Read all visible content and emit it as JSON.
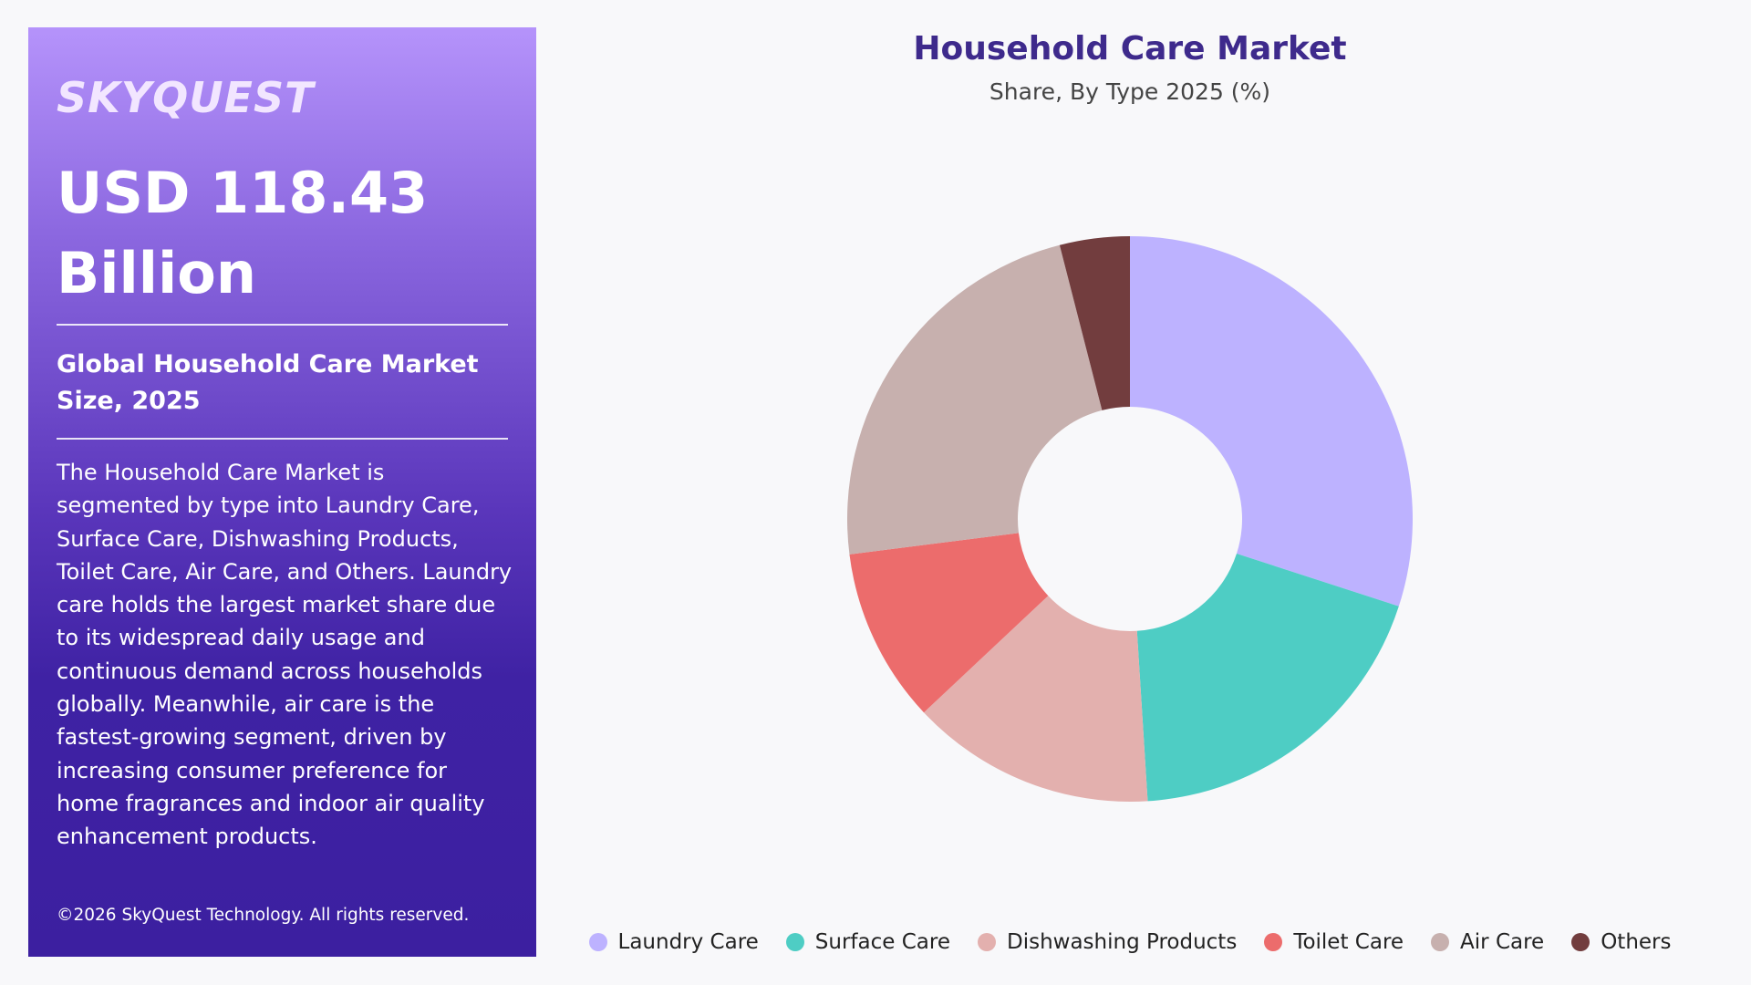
{
  "brand": "SKYQUEST",
  "panel": {
    "headline_value": "USD 118.43 Billion",
    "market_size_label": "Global Household Care Market Size, 2025",
    "description": "The Household Care Market is segmented by type into Laundry Care, Surface Care, Dishwashing Products, Toilet Care, Air Care, and Others. Laundry care holds the largest market share due to its widespread daily usage and continuous demand across households globally. Meanwhile, air care is the fastest-growing segment, driven by increasing consumer preference for home fragrances and indoor air quality enhancement products.",
    "copyright": "©2026 SkyQuest Technology. All rights reserved."
  },
  "chart_data": {
    "type": "pie",
    "title": "Household Care Market",
    "subtitle": "Share, By Type 2025 (%)",
    "donut": true,
    "legend_position": "bottom",
    "categories": [
      "Laundry Care",
      "Surface Care",
      "Dishwashing Products",
      "Toilet Care",
      "Air Care",
      "Others"
    ],
    "values": [
      30,
      19,
      14,
      10,
      23,
      4
    ],
    "colors": [
      "#bdb2ff",
      "#4ecdc4",
      "#e3b0ae",
      "#ec6c6c",
      "#c7b0ae",
      "#723d3e"
    ]
  }
}
